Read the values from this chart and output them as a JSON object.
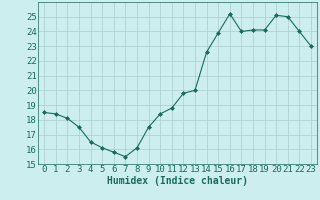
{
  "x": [
    0,
    1,
    2,
    3,
    4,
    5,
    6,
    7,
    8,
    9,
    10,
    11,
    12,
    13,
    14,
    15,
    16,
    17,
    18,
    19,
    20,
    21,
    22,
    23
  ],
  "y": [
    18.5,
    18.4,
    18.1,
    17.5,
    16.5,
    16.1,
    15.8,
    15.5,
    16.1,
    17.5,
    18.4,
    18.8,
    19.8,
    20.0,
    22.6,
    23.9,
    25.2,
    24.0,
    24.1,
    24.1,
    25.1,
    25.0,
    24.0,
    23.0
  ],
  "xlabel": "Humidex (Indice chaleur)",
  "ylim": [
    15,
    26
  ],
  "yticks": [
    15,
    16,
    17,
    18,
    19,
    20,
    21,
    22,
    23,
    24,
    25
  ],
  "xticks": [
    0,
    1,
    2,
    3,
    4,
    5,
    6,
    7,
    8,
    9,
    10,
    11,
    12,
    13,
    14,
    15,
    16,
    17,
    18,
    19,
    20,
    21,
    22,
    23
  ],
  "line_color": "#1a6b5a",
  "marker": "D",
  "marker_size": 2,
  "bg_color": "#cceeee",
  "grid_color": "#aacccc",
  "xlabel_fontsize": 7,
  "tick_fontsize": 6.5
}
